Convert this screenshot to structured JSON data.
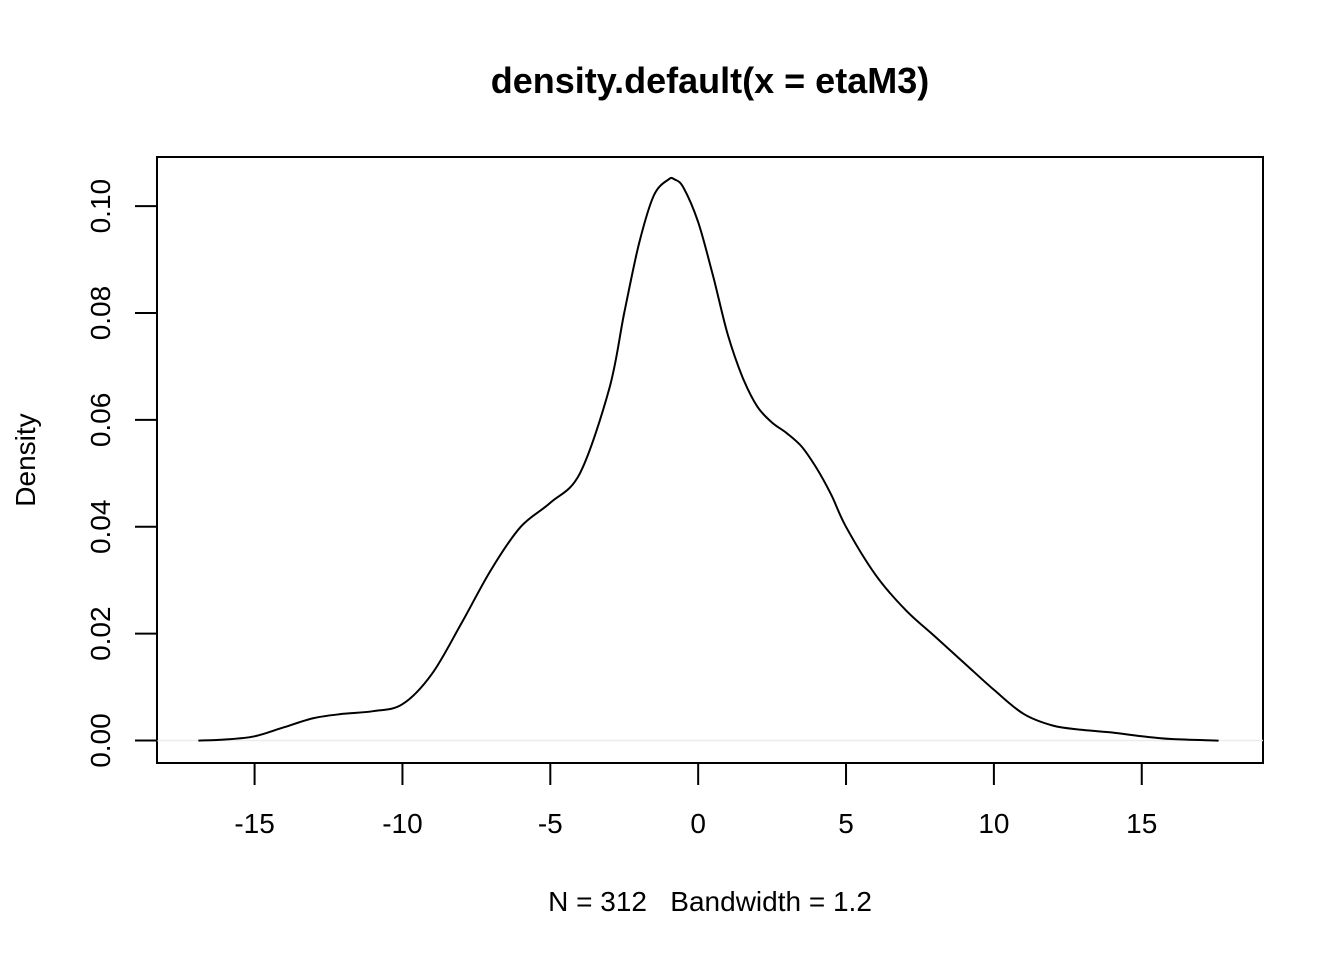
{
  "chart_data": {
    "type": "line",
    "title": "density.default(x = etaM3)",
    "xlabel": "N = 312   Bandwidth = 1.2",
    "ylabel": "Density",
    "xlim": [
      -18.3,
      19.1
    ],
    "ylim": [
      -0.0042,
      0.1092
    ],
    "x_ticks": [
      -15,
      -10,
      -5,
      0,
      5,
      10,
      15
    ],
    "x_tick_labels": [
      "-15",
      "-10",
      "-5",
      "0",
      "5",
      "10",
      "15"
    ],
    "y_ticks": [
      0.0,
      0.02,
      0.04,
      0.06,
      0.08,
      0.1
    ],
    "y_tick_labels": [
      "0.00",
      "0.02",
      "0.04",
      "0.06",
      "0.08",
      "0.10"
    ],
    "grid": false,
    "zero_line": true,
    "series": [
      {
        "x": [
          -16.9,
          -16.0,
          -15.0,
          -14.0,
          -13.0,
          -12.0,
          -11.0,
          -10.0,
          -9.0,
          -8.0,
          -7.0,
          -6.0,
          -5.0,
          -4.0,
          -3.0,
          -2.5,
          -2.0,
          -1.5,
          -1.0,
          -0.8,
          -0.5,
          0.0,
          0.5,
          1.0,
          1.5,
          2.0,
          2.5,
          3.0,
          3.5,
          4.0,
          4.5,
          5.0,
          6.0,
          7.0,
          8.0,
          9.0,
          10.0,
          11.0,
          12.0,
          13.0,
          14.0,
          15.0,
          16.0,
          17.6
        ],
        "y": [
          0.0,
          0.0002,
          0.0008,
          0.0025,
          0.0042,
          0.005,
          0.0055,
          0.0068,
          0.0125,
          0.022,
          0.032,
          0.04,
          0.0445,
          0.05,
          0.066,
          0.08,
          0.093,
          0.102,
          0.105,
          0.105,
          0.1035,
          0.097,
          0.087,
          0.076,
          0.068,
          0.0625,
          0.0595,
          0.0575,
          0.055,
          0.051,
          0.046,
          0.04,
          0.031,
          0.0245,
          0.0195,
          0.0145,
          0.0095,
          0.005,
          0.0028,
          0.002,
          0.0015,
          0.0008,
          0.0003,
          0.0
        ]
      }
    ]
  }
}
